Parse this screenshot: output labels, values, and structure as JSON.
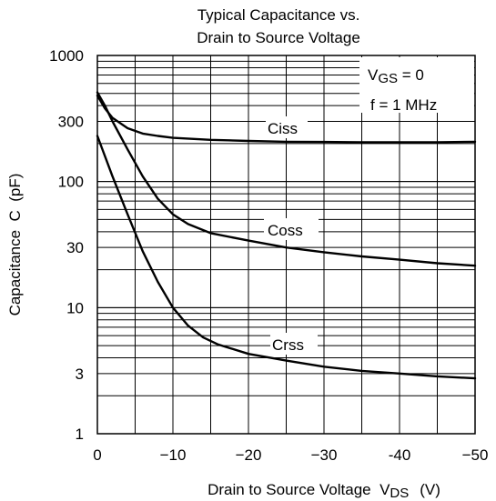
{
  "chart_data": {
    "type": "line",
    "title_lines": [
      "Typical Capacitance vs.",
      "Drain to Source Voltage"
    ],
    "xlabel": "Drain to Source Voltage",
    "xlabel_symbol": "V",
    "xlabel_symbol_sub": "DS",
    "xlabel_unit": "(V)",
    "ylabel": "Capacitance  C  (pF)",
    "xlim": [
      0,
      -50
    ],
    "ylim": [
      1,
      1000
    ],
    "y_scale": "log",
    "grid": true,
    "x_ticks": [
      0,
      -10,
      -20,
      -30,
      -40,
      -50
    ],
    "x_tick_labels": [
      "0",
      "−10",
      "−20",
      "−30",
      "-40",
      "−50"
    ],
    "y_ticks": [
      1,
      3,
      10,
      30,
      100,
      300,
      1000
    ],
    "y_tick_labels": [
      "1",
      "3",
      "10",
      "30",
      "100",
      "300",
      "1000"
    ],
    "annotations": [
      {
        "text": "V",
        "sub": "GS",
        "rest": " = 0"
      },
      {
        "text": "f = 1 MHz"
      }
    ],
    "series": [
      {
        "name": "Ciss",
        "x": [
          0,
          -1,
          -2,
          -4,
          -6,
          -8,
          -10,
          -15,
          -20,
          -25,
          -30,
          -35,
          -40,
          -45,
          -50
        ],
        "y": [
          480,
          380,
          320,
          265,
          240,
          230,
          222,
          214,
          210,
          207,
          206,
          205,
          205,
          205,
          207
        ]
      },
      {
        "name": "Coss",
        "x": [
          0,
          -1,
          -2,
          -4,
          -6,
          -8,
          -10,
          -12,
          -15,
          -20,
          -25,
          -30,
          -35,
          -40,
          -45,
          -50
        ],
        "y": [
          510,
          400,
          300,
          180,
          110,
          73,
          55,
          46,
          39,
          34,
          30,
          27.5,
          25.5,
          24,
          22.5,
          21.5
        ]
      },
      {
        "name": "Crss",
        "x": [
          0,
          -2,
          -4,
          -6,
          -8,
          -10,
          -12,
          -14,
          -16,
          -20,
          -25,
          -30,
          -35,
          -40,
          -45,
          -50
        ],
        "y": [
          230,
          110,
          55,
          28,
          16,
          10,
          7.2,
          5.8,
          5.1,
          4.3,
          3.8,
          3.4,
          3.15,
          3.0,
          2.85,
          2.75
        ]
      }
    ]
  }
}
